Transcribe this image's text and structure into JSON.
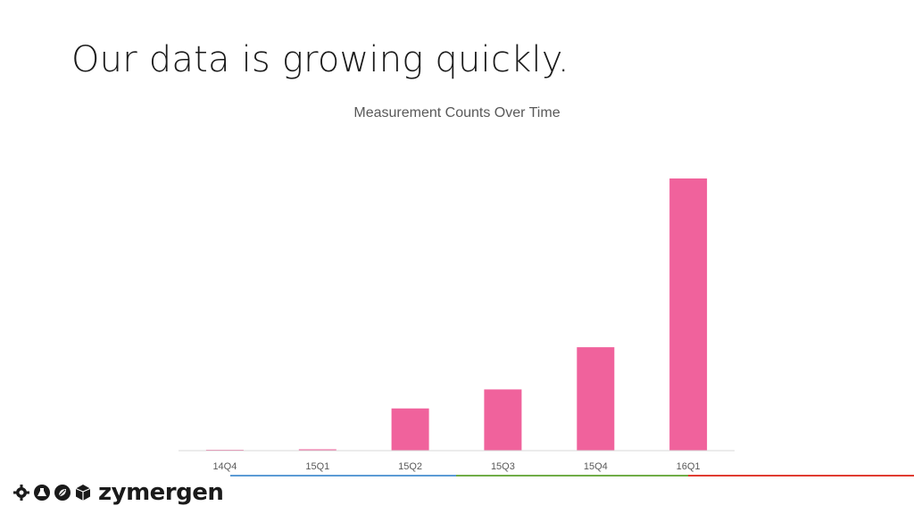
{
  "slide": {
    "title": "Our data is growing quickly."
  },
  "chart_data": {
    "type": "bar",
    "title": "Measurement Counts Over Time",
    "categories": [
      "14Q4",
      "15Q1",
      "15Q2",
      "15Q3",
      "15Q4",
      "16Q1"
    ],
    "values": [
      0.3,
      0.5,
      15.5,
      22.5,
      38,
      100
    ],
    "ylim": [
      0,
      100
    ],
    "xlabel": "",
    "ylabel": "",
    "grid": false,
    "bar_color": "#f0629c"
  },
  "footer": {
    "logo_text": "zymergen",
    "logo_icons": [
      "gear-icon",
      "flask-icon",
      "leaf-icon",
      "cube-icon"
    ],
    "stripe_colors": [
      "#5b9bd5",
      "#70ad47",
      "#e03c31"
    ]
  }
}
